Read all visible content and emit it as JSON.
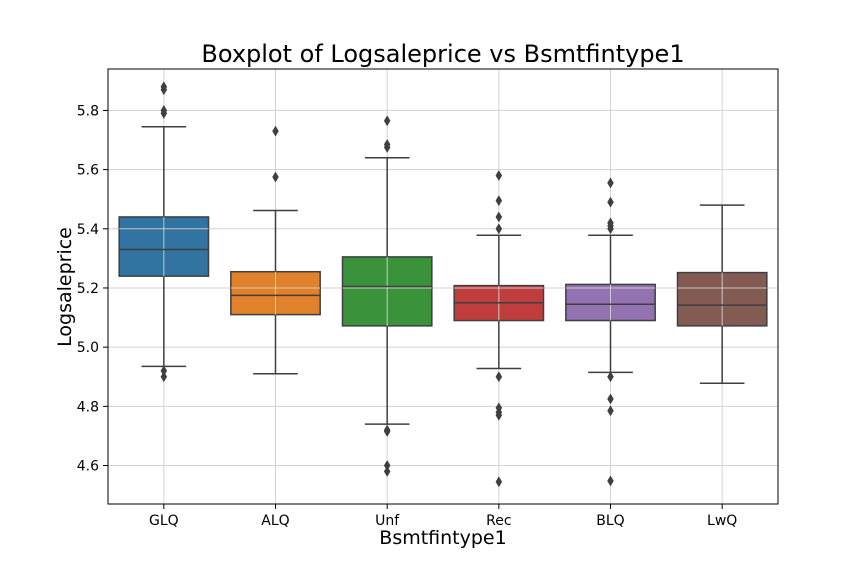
{
  "chart_data": {
    "type": "box",
    "title": "Boxplot of Logsaleprice vs Bsmtfintype1",
    "xlabel": "Bsmtfintype1",
    "ylabel": "Logsaleprice",
    "categories": [
      "GLQ",
      "ALQ",
      "Unf",
      "Rec",
      "BLQ",
      "LwQ"
    ],
    "ylim": [
      4.47,
      5.94
    ],
    "yticks": [
      4.6,
      4.8,
      5.0,
      5.2,
      5.4,
      5.6,
      5.8
    ],
    "ytick_labels": [
      "4.6",
      "4.8",
      "5.0",
      "5.2",
      "5.4",
      "5.6",
      "5.8"
    ],
    "grid": true,
    "legend": "none",
    "boxes": [
      {
        "category": "GLQ",
        "color": "#3274a1",
        "q1": 5.24,
        "median": 5.33,
        "q3": 5.44,
        "whisker_low": 4.935,
        "whisker_high": 5.745,
        "outliers": [
          4.9,
          4.92,
          5.79,
          5.8,
          5.87,
          5.88
        ]
      },
      {
        "category": "ALQ",
        "color": "#e1812c",
        "q1": 5.11,
        "median": 5.175,
        "q3": 5.255,
        "whisker_low": 4.91,
        "whisker_high": 5.462,
        "outliers": [
          5.575,
          5.73
        ]
      },
      {
        "category": "Unf",
        "color": "#3a923a",
        "q1": 5.072,
        "median": 5.205,
        "q3": 5.305,
        "whisker_low": 4.74,
        "whisker_high": 5.64,
        "outliers": [
          4.58,
          4.6,
          4.715,
          4.72,
          5.675,
          5.685,
          5.765
        ]
      },
      {
        "category": "Rec",
        "color": "#c03d3e",
        "q1": 5.09,
        "median": 5.15,
        "q3": 5.208,
        "whisker_low": 4.928,
        "whisker_high": 5.378,
        "outliers": [
          4.545,
          4.77,
          4.78,
          4.795,
          4.9,
          5.4,
          5.44,
          5.495,
          5.58
        ]
      },
      {
        "category": "BLQ",
        "color": "#9372b2",
        "q1": 5.09,
        "median": 5.145,
        "q3": 5.212,
        "whisker_low": 4.915,
        "whisker_high": 5.378,
        "outliers": [
          4.548,
          4.785,
          4.825,
          4.9,
          5.4,
          5.41,
          5.42,
          5.49,
          5.555
        ]
      },
      {
        "category": "LwQ",
        "color": "#845b53",
        "q1": 5.072,
        "median": 5.142,
        "q3": 5.252,
        "whisker_low": 4.878,
        "whisker_high": 5.48,
        "outliers": []
      }
    ]
  }
}
